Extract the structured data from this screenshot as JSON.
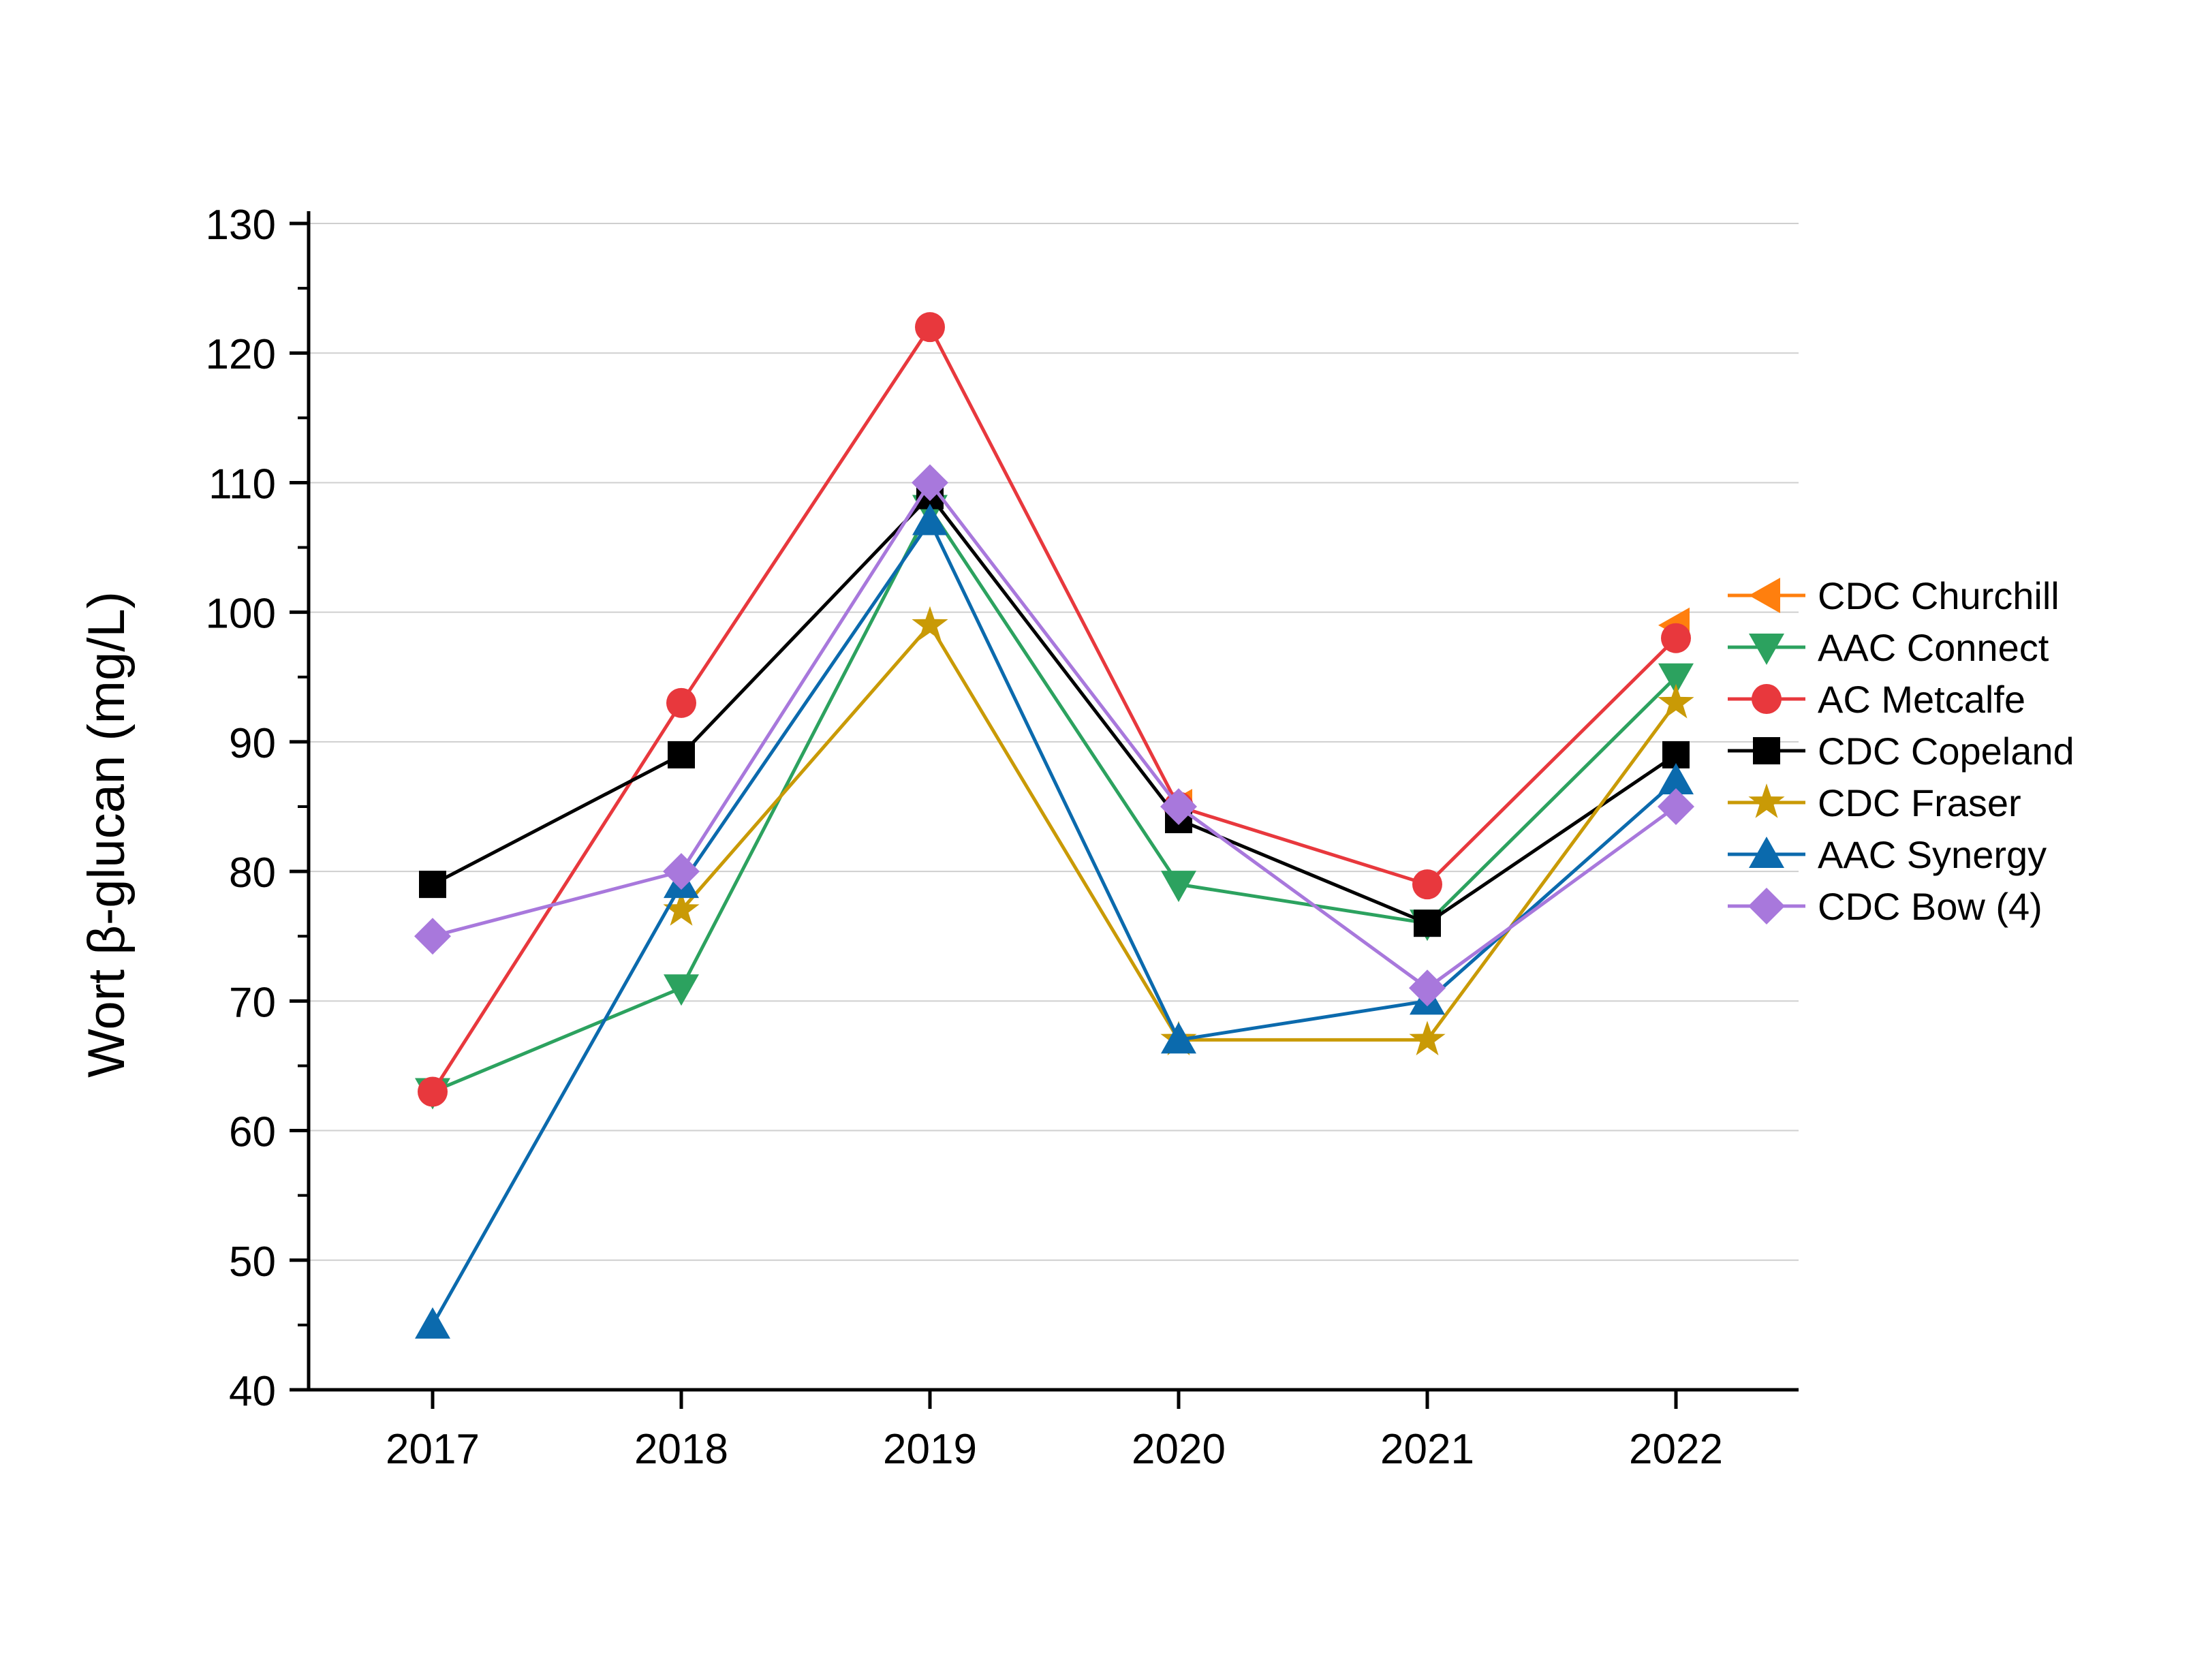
{
  "chart_data": {
    "type": "line",
    "title": "",
    "xlabel": "",
    "ylabel": "Wort β-glucan (mg/L)",
    "categories": [
      "2017",
      "2018",
      "2019",
      "2020",
      "2021",
      "2022"
    ],
    "ylim": [
      40,
      130
    ],
    "yticks": [
      40,
      50,
      60,
      70,
      80,
      90,
      100,
      110,
      120,
      130
    ],
    "grid": "horizontal",
    "legend_position": "right",
    "series": [
      {
        "name": "CDC Churchill",
        "color": "#ff7f0e",
        "marker": "triangle-left",
        "values": [
          null,
          null,
          null,
          85,
          null,
          99
        ]
      },
      {
        "name": "AAC Connect",
        "color": "#2ca25f",
        "marker": "triangle-down",
        "values": [
          63,
          71,
          108,
          79,
          76,
          95
        ]
      },
      {
        "name": "AC Metcalfe",
        "color": "#e8383d",
        "marker": "circle",
        "values": [
          63,
          93,
          122,
          85,
          79,
          98
        ]
      },
      {
        "name": "CDC Copeland",
        "color": "#000000",
        "marker": "square",
        "values": [
          79,
          89,
          109,
          84,
          76,
          89
        ]
      },
      {
        "name": "CDC Fraser",
        "color": "#c99a06",
        "marker": "star",
        "values": [
          null,
          77,
          99,
          67,
          67,
          93
        ]
      },
      {
        "name": "AAC Synergy",
        "color": "#0b6aad",
        "marker": "triangle-up",
        "values": [
          45,
          79,
          107,
          67,
          70,
          87
        ]
      },
      {
        "name": "CDC Bow  (4)",
        "color": "#a878dc",
        "marker": "diamond",
        "values": [
          75,
          80,
          110,
          85,
          71,
          85
        ]
      }
    ]
  }
}
